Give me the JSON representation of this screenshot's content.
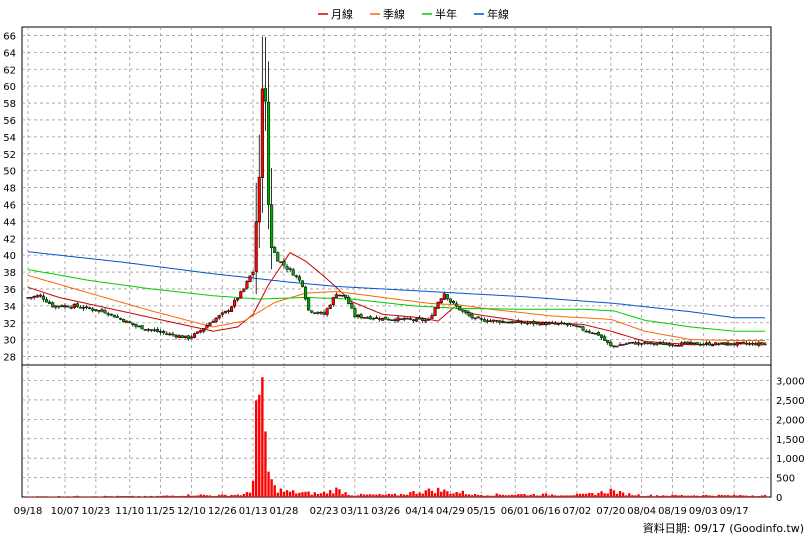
{
  "chart_data": {
    "type": "candlestick",
    "legend": [
      {
        "name": "月線",
        "color": "#cc0000"
      },
      {
        "name": "季線",
        "color": "#ff6600"
      },
      {
        "name": "半年",
        "color": "#00cc00"
      },
      {
        "name": "年線",
        "color": "#0055cc"
      }
    ],
    "y_price_ticks": [
      28,
      30,
      32,
      34,
      36,
      38,
      40,
      42,
      44,
      46,
      48,
      50,
      52,
      54,
      56,
      58,
      60,
      62,
      64,
      66
    ],
    "ylim_price": [
      27,
      67
    ],
    "y_volume_ticks": [
      "0",
      "500",
      "1,000",
      "1,500",
      "2,000",
      "2,500",
      "3,000"
    ],
    "y_volume_values": [
      0,
      500,
      1000,
      1500,
      2000,
      2500,
      3000
    ],
    "ylim_volume": [
      0,
      3400
    ],
    "x_ticks": [
      "09/18",
      "10/07",
      "10/23",
      "11/10",
      "11/25",
      "12/10",
      "12/26",
      "01/13",
      "01/28",
      "02/23",
      "03/11",
      "03/26",
      "04/14",
      "04/29",
      "05/15",
      "06/01",
      "06/16",
      "07/02",
      "07/20",
      "08/04",
      "08/19",
      "09/03",
      "09/17"
    ],
    "x_count": 240,
    "x_tick_index": [
      0,
      12,
      22,
      33,
      43,
      53,
      63,
      73,
      83,
      96,
      106,
      116,
      127,
      137,
      147,
      158,
      168,
      178,
      189,
      199,
      209,
      219,
      229
    ],
    "ma_month": [
      [
        0,
        36.2
      ],
      [
        10,
        35.0
      ],
      [
        25,
        33.8
      ],
      [
        45,
        32.2
      ],
      [
        60,
        31.0
      ],
      [
        68,
        31.5
      ],
      [
        73,
        33.0
      ],
      [
        78,
        36.5
      ],
      [
        85,
        40.3
      ],
      [
        90,
        39.3
      ],
      [
        96,
        37.5
      ],
      [
        105,
        34.5
      ],
      [
        115,
        33.0
      ],
      [
        127,
        32.6
      ],
      [
        133,
        32.2
      ],
      [
        138,
        33.8
      ],
      [
        145,
        33.0
      ],
      [
        160,
        32.2
      ],
      [
        180,
        31.8
      ],
      [
        189,
        31.0
      ],
      [
        200,
        29.8
      ],
      [
        215,
        29.4
      ],
      [
        229,
        29.5
      ]
    ],
    "ma_quarter": [
      [
        0,
        37.6
      ],
      [
        20,
        35.5
      ],
      [
        40,
        33.4
      ],
      [
        60,
        31.5
      ],
      [
        70,
        32.2
      ],
      [
        80,
        34.4
      ],
      [
        90,
        35.5
      ],
      [
        100,
        35.7
      ],
      [
        115,
        35.0
      ],
      [
        130,
        34.3
      ],
      [
        140,
        34.1
      ],
      [
        150,
        33.6
      ],
      [
        170,
        32.8
      ],
      [
        189,
        32.4
      ],
      [
        200,
        31.0
      ],
      [
        215,
        30.0
      ],
      [
        229,
        29.9
      ]
    ],
    "ma_half": [
      [
        0,
        38.3
      ],
      [
        20,
        37.0
      ],
      [
        40,
        36.0
      ],
      [
        60,
        35.2
      ],
      [
        75,
        34.8
      ],
      [
        90,
        35.0
      ],
      [
        105,
        34.8
      ],
      [
        125,
        34.0
      ],
      [
        140,
        33.7
      ],
      [
        160,
        33.6
      ],
      [
        180,
        33.6
      ],
      [
        190,
        33.4
      ],
      [
        200,
        32.3
      ],
      [
        215,
        31.5
      ],
      [
        229,
        31.0
      ]
    ],
    "ma_year": [
      [
        0,
        40.4
      ],
      [
        30,
        39.2
      ],
      [
        60,
        37.8
      ],
      [
        85,
        36.8
      ],
      [
        100,
        36.3
      ],
      [
        130,
        35.7
      ],
      [
        160,
        35.1
      ],
      [
        190,
        34.3
      ],
      [
        215,
        33.3
      ],
      [
        229,
        32.6
      ]
    ],
    "price_anchors": [
      [
        0,
        35.0
      ],
      [
        4,
        35.2
      ],
      [
        8,
        34.0
      ],
      [
        15,
        34.0
      ],
      [
        25,
        33.3
      ],
      [
        35,
        31.6
      ],
      [
        45,
        30.7
      ],
      [
        52,
        30.2
      ],
      [
        55,
        30.8
      ],
      [
        60,
        32.3
      ],
      [
        65,
        33.5
      ],
      [
        70,
        36.0
      ],
      [
        72,
        37.5
      ],
      [
        73,
        38.0
      ],
      [
        74,
        44.0
      ],
      [
        75,
        49.0
      ],
      [
        76,
        60.0
      ],
      [
        77,
        58.0
      ],
      [
        78,
        46.0
      ],
      [
        79,
        41.0
      ],
      [
        81,
        39.5
      ],
      [
        84,
        38.5
      ],
      [
        87,
        37.5
      ],
      [
        89,
        36.5
      ],
      [
        91,
        33.5
      ],
      [
        96,
        33.0
      ],
      [
        100,
        35.5
      ],
      [
        103,
        35.0
      ],
      [
        106,
        32.8
      ],
      [
        115,
        32.5
      ],
      [
        127,
        32.3
      ],
      [
        130,
        32.3
      ],
      [
        133,
        34.5
      ],
      [
        135,
        35.5
      ],
      [
        137,
        34.5
      ],
      [
        141,
        33.3
      ],
      [
        145,
        32.4
      ],
      [
        160,
        32.0
      ],
      [
        175,
        31.8
      ],
      [
        185,
        30.6
      ],
      [
        189,
        29.2
      ],
      [
        195,
        29.6
      ],
      [
        205,
        29.5
      ],
      [
        215,
        29.5
      ],
      [
        229,
        29.5
      ]
    ],
    "volume_anchors": [
      [
        0,
        15
      ],
      [
        20,
        25
      ],
      [
        40,
        20
      ],
      [
        55,
        60
      ],
      [
        60,
        40
      ],
      [
        70,
        70
      ],
      [
        72,
        120
      ],
      [
        73,
        700
      ],
      [
        74,
        2700
      ],
      [
        75,
        2200
      ],
      [
        76,
        2250
      ],
      [
        77,
        1600
      ],
      [
        78,
        700
      ],
      [
        79,
        400
      ],
      [
        80,
        250
      ],
      [
        83,
        150
      ],
      [
        88,
        120
      ],
      [
        95,
        90
      ],
      [
        100,
        200
      ],
      [
        105,
        60
      ],
      [
        120,
        60
      ],
      [
        127,
        150
      ],
      [
        133,
        190
      ],
      [
        137,
        130
      ],
      [
        141,
        120
      ],
      [
        145,
        60
      ],
      [
        160,
        70
      ],
      [
        180,
        60
      ],
      [
        186,
        120
      ],
      [
        189,
        180
      ],
      [
        193,
        90
      ],
      [
        200,
        45
      ],
      [
        215,
        45
      ],
      [
        229,
        45
      ]
    ],
    "source_note": "資料日期: 09/17 (Goodinfo.tw)"
  }
}
